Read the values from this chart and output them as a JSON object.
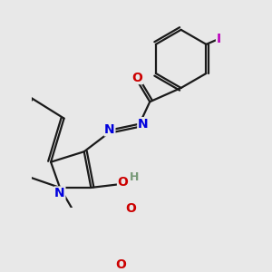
{
  "bg_color": "#e8e8e8",
  "bond_color": "#1a1a1a",
  "bond_width": 1.6,
  "atom_colors": {
    "N": "#0000dd",
    "O": "#cc0000",
    "I": "#bb00bb",
    "H": "#779977",
    "C": "#1a1a1a"
  },
  "font_size_atom": 9.5
}
